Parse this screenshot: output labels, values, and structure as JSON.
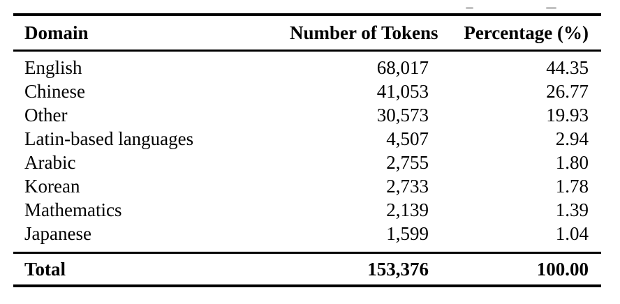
{
  "page": {
    "background_color": "#ffffff",
    "text_color": "#000000",
    "rule_color": "#000000"
  },
  "table": {
    "columns": [
      {
        "id": "domain",
        "label": "Domain",
        "align": "left"
      },
      {
        "id": "tokens",
        "label": "Number of Tokens",
        "align": "right"
      },
      {
        "id": "percentage",
        "label": "Percentage (%)",
        "align": "right"
      }
    ],
    "rows": [
      {
        "domain": "English",
        "tokens": "68,017",
        "percentage": "44.35"
      },
      {
        "domain": "Chinese",
        "tokens": "41,053",
        "percentage": "26.77"
      },
      {
        "domain": "Other",
        "tokens": "30,573",
        "percentage": "19.93"
      },
      {
        "domain": "Latin-based languages",
        "tokens": "4,507",
        "percentage": "2.94"
      },
      {
        "domain": "Arabic",
        "tokens": "2,755",
        "percentage": "1.80"
      },
      {
        "domain": "Korean",
        "tokens": "2,733",
        "percentage": "1.78"
      },
      {
        "domain": "Mathematics",
        "tokens": "2,139",
        "percentage": "1.39"
      },
      {
        "domain": "Japanese",
        "tokens": "1,599",
        "percentage": "1.04"
      }
    ],
    "total_row": {
      "domain": "Total",
      "tokens": "153,376",
      "percentage": "100.00"
    }
  }
}
